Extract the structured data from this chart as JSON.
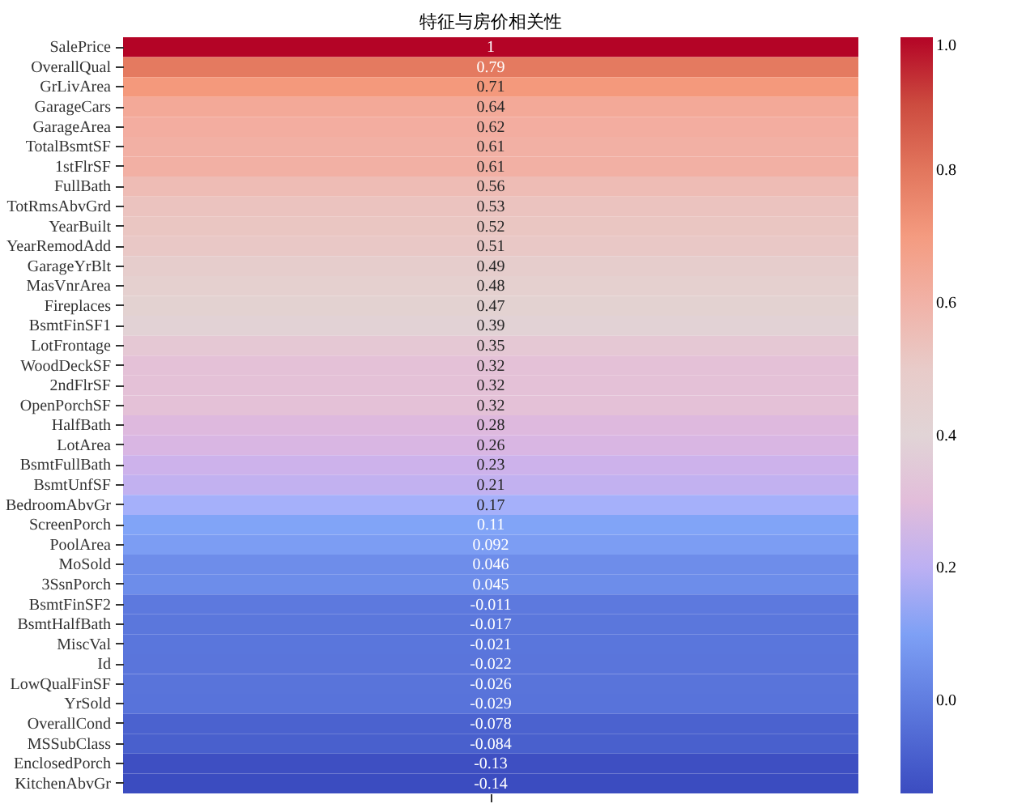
{
  "chart_data": {
    "type": "heatmap",
    "title": "特征与房价相关性",
    "categories": [
      null
    ],
    "y_categories": [
      "SalePrice",
      "OverallQual",
      "GrLivArea",
      "GarageCars",
      "GarageArea",
      "TotalBsmtSF",
      "1stFlrSF",
      "FullBath",
      "TotRmsAbvGrd",
      "YearBuilt",
      "YearRemodAdd",
      "GarageYrBlt",
      "MasVnrArea",
      "Fireplaces",
      "BsmtFinSF1",
      "LotFrontage",
      "WoodDeckSF",
      "2ndFlrSF",
      "OpenPorchSF",
      "HalfBath",
      "LotArea",
      "BsmtFullBath",
      "BsmtUnfSF",
      "BedroomAbvGr",
      "ScreenPorch",
      "PoolArea",
      "MoSold",
      "3SsnPorch",
      "BsmtFinSF2",
      "BsmtHalfBath",
      "MiscVal",
      "Id",
      "LowQualFinSF",
      "YrSold",
      "OverallCond",
      "MSSubClass",
      "EnclosedPorch",
      "KitchenAbvGr"
    ],
    "cells": [
      [
        1
      ],
      [
        0.79
      ],
      [
        0.71
      ],
      [
        0.64
      ],
      [
        0.62
      ],
      [
        0.61
      ],
      [
        0.61
      ],
      [
        0.56
      ],
      [
        0.53
      ],
      [
        0.52
      ],
      [
        0.51
      ],
      [
        0.49
      ],
      [
        0.48
      ],
      [
        0.47
      ],
      [
        0.39
      ],
      [
        0.35
      ],
      [
        0.32
      ],
      [
        0.32
      ],
      [
        0.32
      ],
      [
        0.28
      ],
      [
        0.26
      ],
      [
        0.23
      ],
      [
        0.21
      ],
      [
        0.17
      ],
      [
        0.11
      ],
      [
        0.092
      ],
      [
        0.046
      ],
      [
        0.045
      ],
      [
        -0.011
      ],
      [
        -0.017
      ],
      [
        -0.021
      ],
      [
        -0.022
      ],
      [
        -0.026
      ],
      [
        -0.029
      ],
      [
        -0.078
      ],
      [
        -0.084
      ],
      [
        -0.13
      ],
      [
        -0.14
      ]
    ],
    "data_labels": true,
    "clim": [
      -0.14,
      1
    ],
    "cticks": [
      {
        "value": 0,
        "label": "0.0"
      },
      {
        "value": 0.2,
        "label": "0.2"
      },
      {
        "value": 0.4,
        "label": "0.4"
      },
      {
        "value": 0.6,
        "label": "0.6"
      },
      {
        "value": 0.8,
        "label": "0.8"
      },
      {
        "value": 1,
        "label": "1.0"
      }
    ]
  }
}
